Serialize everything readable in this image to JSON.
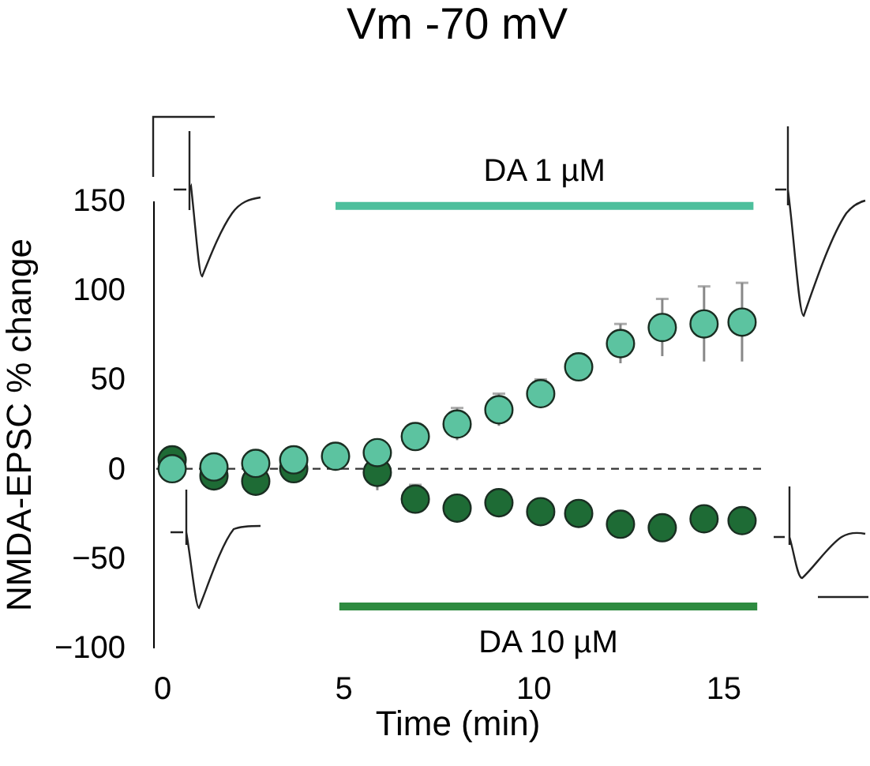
{
  "chart_data": {
    "type": "scatter",
    "title": "Vm -70 mV",
    "xlabel": "Time (min)",
    "ylabel": "NMDA-EPSC % change",
    "x": [
      0.5,
      1.6,
      2.7,
      3.7,
      4.8,
      5.9,
      6.9,
      8.0,
      9.1,
      10.2,
      11.2,
      12.3,
      13.4,
      14.5,
      15.5
    ],
    "series": [
      {
        "color": "#1e6b35",
        "values": [
          5,
          -4,
          -7,
          0,
          null,
          -2,
          -17,
          -22,
          -19,
          -24,
          -25,
          -31,
          -33,
          -28,
          -29
        ],
        "errors": [
          null,
          null,
          6,
          null,
          null,
          10,
          8,
          null,
          null,
          null,
          null,
          null,
          null,
          null,
          null
        ]
      },
      {
        "color": "#5cc3a0",
        "values": [
          0,
          1,
          3,
          5,
          7,
          9,
          18,
          25,
          33,
          42,
          57,
          70,
          79,
          81,
          82
        ],
        "errors": [
          null,
          null,
          null,
          null,
          null,
          null,
          null,
          9,
          9,
          8,
          7,
          11,
          16,
          21,
          22
        ]
      },
      {
        "type": "line",
        "name": "DA 1 µM",
        "color": "#4dbf9c",
        "x": [
          4.8,
          15.8
        ],
        "values": [
          147,
          147
        ],
        "marker": "none"
      },
      {
        "type": "line",
        "name": "DA 10 µM",
        "color": "#2e8b40",
        "x": [
          4.9,
          15.9
        ],
        "values": [
          -77,
          -77
        ],
        "marker": "none"
      }
    ],
    "xlim": [
      0,
      16
    ],
    "xticks": [
      0,
      5,
      10,
      15
    ],
    "ylim": [
      -100,
      150
    ],
    "yticks": [
      -100,
      -50,
      0,
      50,
      100,
      150
    ],
    "marker": "circle",
    "grid": false,
    "ref_lines": [
      {
        "axis": "y",
        "value": 0,
        "line_style": "dashed",
        "color": "#333333"
      }
    ]
  }
}
